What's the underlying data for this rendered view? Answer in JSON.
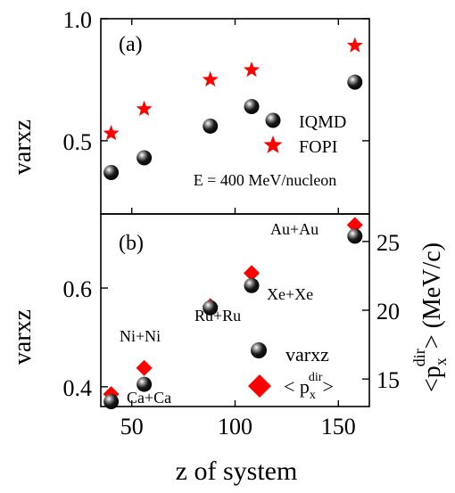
{
  "figure": {
    "xlabel": "z of system",
    "x_ticks": [
      50,
      100,
      150
    ]
  },
  "colors": {
    "axis": "#000000",
    "fopi": "#ff0000",
    "iqmd": "#000000",
    "diamond": "#ff0000"
  },
  "icons": {
    "iqmd_marker": "black-sphere",
    "fopi_marker": "red-star",
    "varxz_marker": "black-sphere",
    "px_marker": "red-diamond"
  },
  "chart_data": [
    {
      "panel_label": "(a)",
      "type": "scatter",
      "ylabel": "varxz",
      "xlim": [
        35,
        165
      ],
      "ylim": [
        0.2,
        1.0
      ],
      "y_ticks": [
        0.5,
        1.0
      ],
      "y_tick_labels": [
        "0.5",
        "1.0"
      ],
      "annotation": "E = 400 MeV/nucleon",
      "legend_position": "right",
      "series": [
        {
          "name": "IQMD",
          "marker": "sphere",
          "x": [
            40,
            56,
            88,
            108,
            158
          ],
          "y": [
            0.37,
            0.43,
            0.56,
            0.64,
            0.74
          ]
        },
        {
          "name": "FOPI",
          "marker": "star",
          "x": [
            40,
            56,
            88,
            108,
            158
          ],
          "y": [
            0.53,
            0.63,
            0.75,
            0.79,
            0.89
          ]
        }
      ]
    },
    {
      "panel_label": "(b)",
      "type": "scatter",
      "ylabel": "varxz",
      "right_ylabel": "<p_x^dir> (MeV/c)",
      "right_ylabel_parts": {
        "open": "<p",
        "sub": "x",
        "sup": "dir",
        "close": "> (MeV/c)"
      },
      "xlim": [
        35,
        165
      ],
      "ylim": [
        0.36,
        0.75
      ],
      "y_ticks": [
        0.4,
        0.6
      ],
      "y_tick_labels": [
        "0.4",
        "0.6"
      ],
      "right_ylim": [
        13,
        27
      ],
      "right_ticks": [
        15,
        20,
        25
      ],
      "right_tick_labels": [
        "15",
        "20",
        "25"
      ],
      "legend_position": "bottom-right",
      "systems": [
        "Ca+Ca",
        "Ni+Ni",
        "Ru+Ru",
        "Xe+Xe",
        "Au+Au"
      ],
      "series": [
        {
          "name": "varxz",
          "marker": "sphere",
          "axis": "left",
          "x": [
            40,
            56,
            88,
            108,
            158
          ],
          "y": [
            0.37,
            0.405,
            0.56,
            0.605,
            0.705
          ]
        },
        {
          "name": "<p_x^dir>",
          "legend_parts": {
            "open": "< p",
            "sub": "x",
            "sup": "dir",
            "close": ">"
          },
          "marker": "diamond",
          "axis": "right",
          "x": [
            40,
            56,
            88,
            108,
            158
          ],
          "y": [
            13.9,
            15.8,
            20.3,
            22.7,
            26.2
          ]
        }
      ]
    }
  ]
}
